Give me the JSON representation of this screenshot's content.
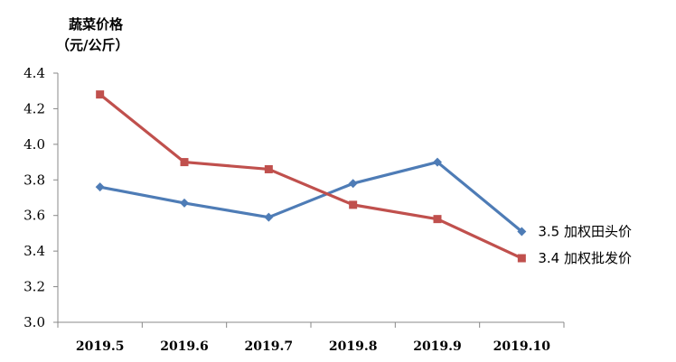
{
  "chart_data": {
    "type": "line",
    "ylabel_lines": [
      "蔬菜价格",
      "（元/公斤）"
    ],
    "categories": [
      "2019.5",
      "2019.6",
      "2019.7",
      "2019.8",
      "2019.9",
      "2019.10"
    ],
    "ylim": [
      3.0,
      4.4
    ],
    "yticks": [
      "3.0",
      "3.2",
      "3.4",
      "3.6",
      "3.8",
      "4.0",
      "4.2",
      "4.4"
    ],
    "grid": false,
    "legend": "end-of-line labels",
    "series": [
      {
        "name": "加权田头价",
        "end_label": "3.5 加权田头价",
        "values": [
          3.76,
          3.67,
          3.59,
          3.78,
          3.9,
          3.51
        ],
        "color": "#4E7CB6",
        "marker": "diamond"
      },
      {
        "name": "加权批发价",
        "end_label": "3.4 加权批发价",
        "values": [
          4.28,
          3.9,
          3.86,
          3.66,
          3.58,
          3.36
        ],
        "color": "#C0504D",
        "marker": "square"
      }
    ]
  }
}
